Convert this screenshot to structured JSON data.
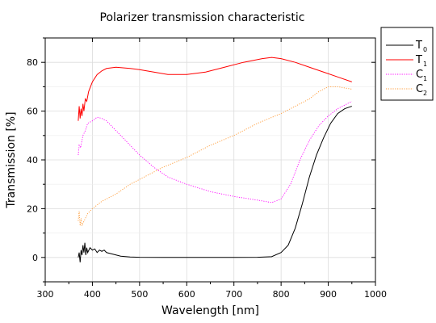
{
  "chart_data": {
    "type": "line",
    "title": "Polarizer transmission characteristic",
    "xlabel": "Wavelength [nm]",
    "ylabel": "Transmission [%]",
    "xlim": [
      300,
      1000
    ],
    "ylim": [
      -10,
      90
    ],
    "x_ticks": [
      300,
      400,
      500,
      600,
      700,
      800,
      900,
      1000
    ],
    "y_ticks": [
      0,
      20,
      40,
      60,
      80
    ],
    "grid": true,
    "legend_position": "outside-top-right",
    "series": [
      {
        "name": "T",
        "subscript": "0",
        "color": "#000000",
        "dash": "solid",
        "points": [
          [
            370,
            0
          ],
          [
            372,
            2
          ],
          [
            374,
            -2
          ],
          [
            376,
            3
          ],
          [
            378,
            1
          ],
          [
            380,
            5
          ],
          [
            382,
            2
          ],
          [
            384,
            6
          ],
          [
            386,
            1
          ],
          [
            388,
            4
          ],
          [
            390,
            2
          ],
          [
            395,
            4
          ],
          [
            400,
            3
          ],
          [
            405,
            3.5
          ],
          [
            410,
            2
          ],
          [
            415,
            3
          ],
          [
            420,
            2.5
          ],
          [
            425,
            3
          ],
          [
            430,
            2
          ],
          [
            440,
            1.5
          ],
          [
            450,
            1
          ],
          [
            460,
            0.5
          ],
          [
            480,
            0.2
          ],
          [
            500,
            0.05
          ],
          [
            550,
            0
          ],
          [
            600,
            0
          ],
          [
            650,
            0
          ],
          [
            700,
            0
          ],
          [
            750,
            0.05
          ],
          [
            780,
            0.3
          ],
          [
            800,
            2
          ],
          [
            815,
            5
          ],
          [
            830,
            12
          ],
          [
            845,
            22
          ],
          [
            860,
            33
          ],
          [
            875,
            42
          ],
          [
            890,
            49
          ],
          [
            905,
            55
          ],
          [
            920,
            59
          ],
          [
            935,
            61
          ],
          [
            950,
            62
          ]
        ]
      },
      {
        "name": "T",
        "subscript": "1",
        "color": "#ff0000",
        "dash": "solid",
        "points": [
          [
            370,
            56
          ],
          [
            372,
            62
          ],
          [
            374,
            57
          ],
          [
            376,
            61
          ],
          [
            378,
            58
          ],
          [
            380,
            63
          ],
          [
            382,
            60
          ],
          [
            385,
            65
          ],
          [
            388,
            64
          ],
          [
            392,
            68
          ],
          [
            396,
            70
          ],
          [
            400,
            72
          ],
          [
            410,
            75
          ],
          [
            420,
            76.5
          ],
          [
            430,
            77.5
          ],
          [
            450,
            78
          ],
          [
            480,
            77.5
          ],
          [
            500,
            77
          ],
          [
            530,
            76
          ],
          [
            560,
            75
          ],
          [
            600,
            75
          ],
          [
            640,
            76
          ],
          [
            680,
            78
          ],
          [
            720,
            80
          ],
          [
            760,
            81.5
          ],
          [
            780,
            82
          ],
          [
            800,
            81.5
          ],
          [
            830,
            80
          ],
          [
            860,
            78
          ],
          [
            890,
            76
          ],
          [
            920,
            74
          ],
          [
            950,
            72
          ]
        ]
      },
      {
        "name": "C",
        "subscript": "1",
        "color": "#ff00ff",
        "dash": "dotted",
        "points": [
          [
            370,
            42
          ],
          [
            372,
            46
          ],
          [
            375,
            45
          ],
          [
            378,
            48
          ],
          [
            380,
            50
          ],
          [
            385,
            52
          ],
          [
            390,
            55
          ],
          [
            400,
            56
          ],
          [
            410,
            57.5
          ],
          [
            420,
            57
          ],
          [
            430,
            56
          ],
          [
            450,
            52
          ],
          [
            480,
            46
          ],
          [
            500,
            42
          ],
          [
            530,
            37
          ],
          [
            560,
            33
          ],
          [
            600,
            30
          ],
          [
            650,
            27
          ],
          [
            700,
            25
          ],
          [
            750,
            23.5
          ],
          [
            780,
            22.5
          ],
          [
            800,
            24
          ],
          [
            820,
            30
          ],
          [
            840,
            40
          ],
          [
            860,
            48
          ],
          [
            880,
            54
          ],
          [
            900,
            58
          ],
          [
            920,
            61
          ],
          [
            950,
            64
          ]
        ]
      },
      {
        "name": "C",
        "subscript": "2",
        "color": "#ff9933",
        "dash": "dotted",
        "points": [
          [
            370,
            15
          ],
          [
            372,
            19
          ],
          [
            374,
            13
          ],
          [
            376,
            16
          ],
          [
            378,
            13
          ],
          [
            380,
            14
          ],
          [
            385,
            16
          ],
          [
            390,
            18
          ],
          [
            400,
            20
          ],
          [
            420,
            23
          ],
          [
            450,
            26
          ],
          [
            480,
            30
          ],
          [
            500,
            32
          ],
          [
            550,
            37
          ],
          [
            600,
            41
          ],
          [
            650,
            46
          ],
          [
            700,
            50
          ],
          [
            750,
            55
          ],
          [
            800,
            59
          ],
          [
            830,
            62
          ],
          [
            860,
            65
          ],
          [
            880,
            68
          ],
          [
            900,
            70
          ],
          [
            920,
            70
          ],
          [
            950,
            69
          ]
        ]
      }
    ]
  }
}
